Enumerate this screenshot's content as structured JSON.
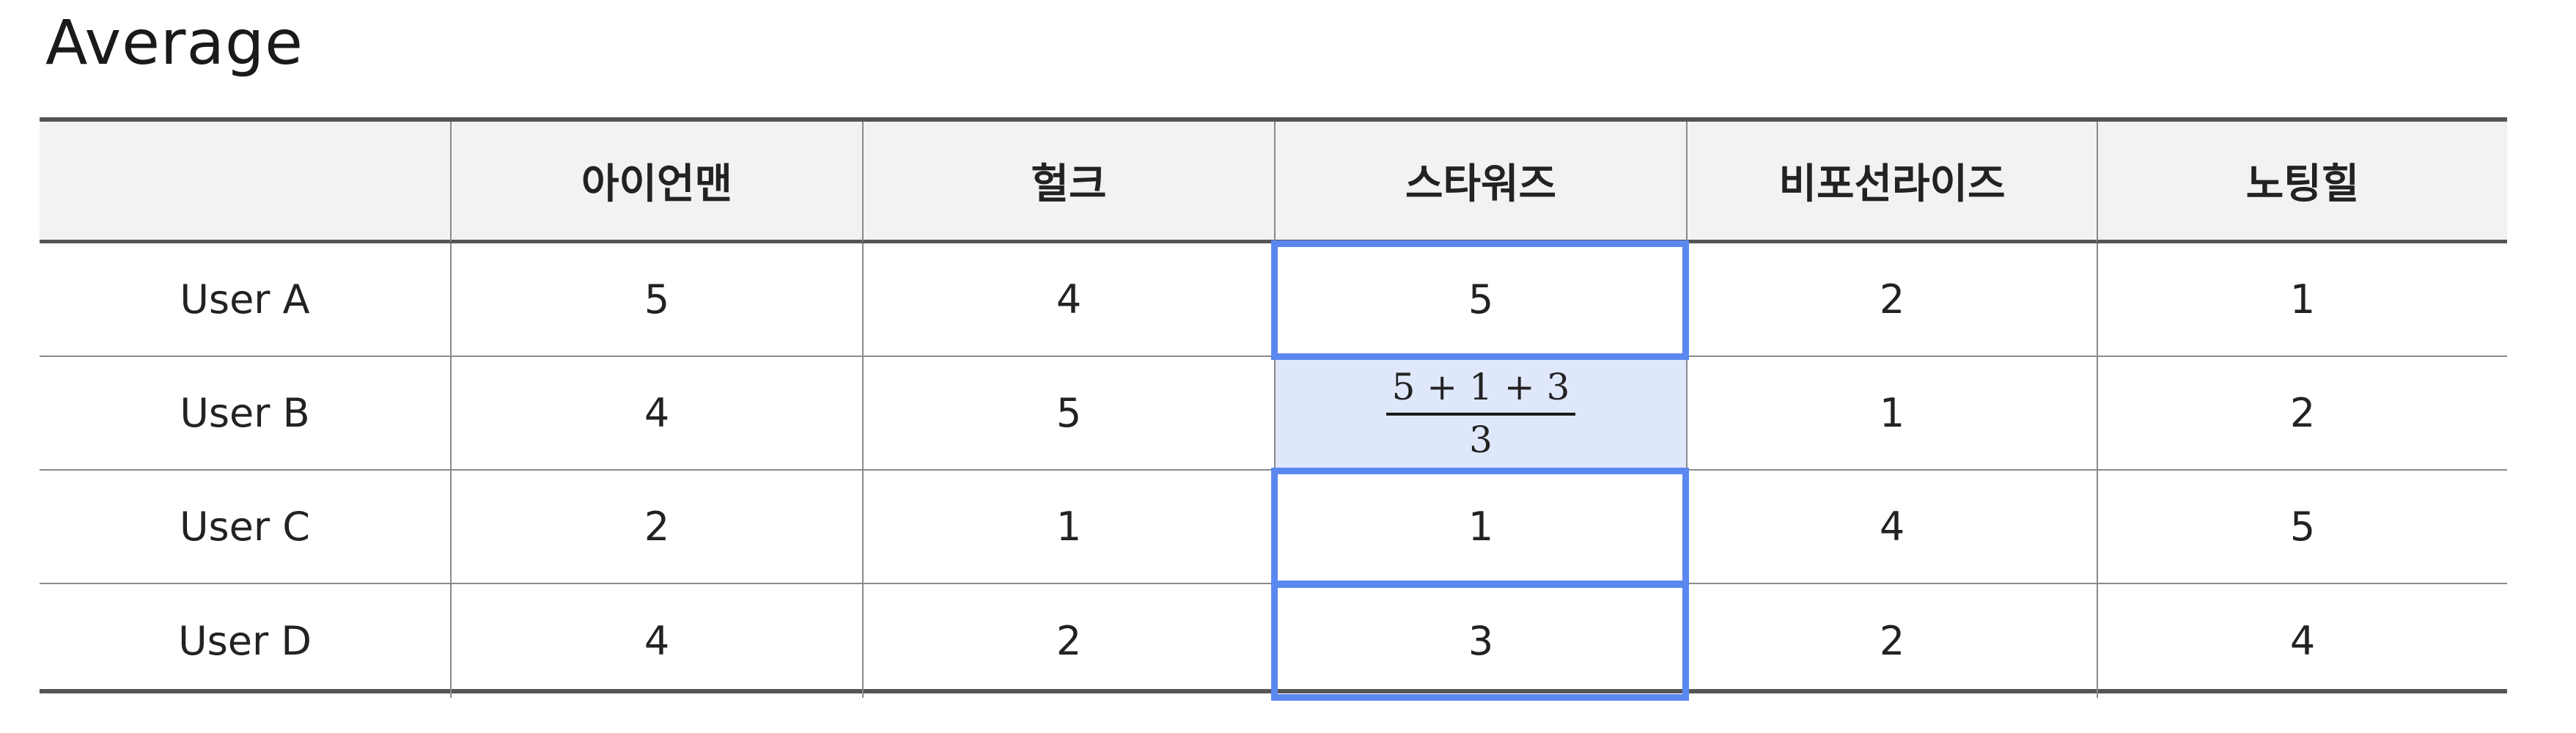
{
  "title": "Average",
  "table": {
    "headers": [
      "",
      "아이언맨",
      "헐크",
      "스타워즈",
      "비포선라이즈",
      "노팅힐"
    ],
    "rows": [
      {
        "user": "User A",
        "values": [
          "5",
          "4",
          "5",
          "2",
          "1"
        ]
      },
      {
        "user": "User B",
        "values": [
          "4",
          "5",
          "",
          "1",
          "2"
        ]
      },
      {
        "user": "User C",
        "values": [
          "2",
          "1",
          "1",
          "4",
          "5"
        ]
      },
      {
        "user": "User D",
        "values": [
          "4",
          "2",
          "3",
          "2",
          "4"
        ]
      }
    ],
    "formula": {
      "numerator": "5 + 1 + 3",
      "denominator": "3"
    }
  },
  "colors": {
    "highlight_border": "#5b87f0",
    "highlight_fill": "#dfe7fb",
    "header_fill": "#f2f2f2"
  }
}
